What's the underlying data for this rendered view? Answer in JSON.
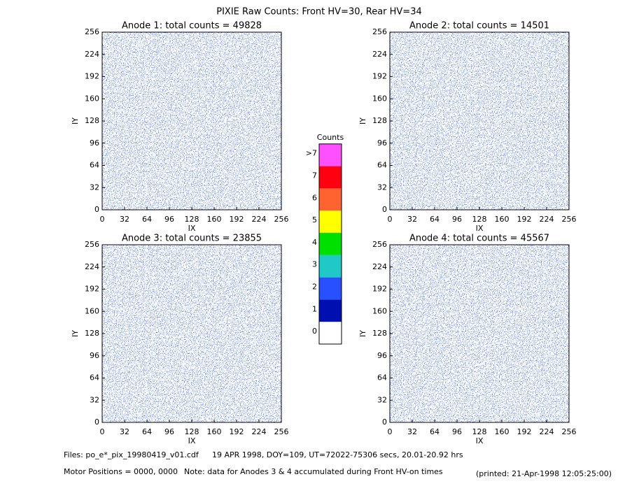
{
  "title": "PIXIE Raw Counts:  Front HV=30, Rear HV=34",
  "panels": [
    {
      "title": "Anode 1: total counts = 49828",
      "xlabel": "IX",
      "ylabel": "IY",
      "xlim": [
        0,
        256
      ],
      "ylim": [
        0,
        256
      ],
      "xticks": [
        0,
        32,
        64,
        96,
        128,
        160,
        192,
        224,
        256
      ],
      "yticks": [
        0,
        32,
        64,
        96,
        128,
        160,
        192,
        224,
        256
      ]
    },
    {
      "title": "Anode 2: total counts = 14501",
      "xlabel": "IX",
      "ylabel": "IY",
      "xlim": [
        0,
        256
      ],
      "ylim": [
        0,
        256
      ],
      "xticks": [
        0,
        32,
        64,
        96,
        128,
        160,
        192,
        224,
        256
      ],
      "yticks": [
        0,
        32,
        64,
        96,
        128,
        160,
        192,
        224,
        256
      ]
    },
    {
      "title": "Anode 3: total counts = 23855",
      "xlabel": "IX",
      "ylabel": "IY",
      "xlim": [
        0,
        256
      ],
      "ylim": [
        0,
        256
      ],
      "xticks": [
        0,
        32,
        64,
        96,
        128,
        160,
        192,
        224,
        256
      ],
      "yticks": [
        0,
        32,
        64,
        96,
        128,
        160,
        192,
        224,
        256
      ]
    },
    {
      "title": "Anode 4: total counts = 45567",
      "xlabel": "IX",
      "ylabel": "IY",
      "xlim": [
        0,
        256
      ],
      "ylim": [
        0,
        256
      ],
      "xticks": [
        0,
        32,
        64,
        96,
        128,
        160,
        192,
        224,
        256
      ],
      "yticks": [
        0,
        32,
        64,
        96,
        128,
        160,
        192,
        224,
        256
      ]
    }
  ],
  "colorbar": {
    "title": "Counts",
    "levels": [
      {
        "label": "0",
        "color": "#ffffff"
      },
      {
        "label": "1",
        "color": "#0010b0"
      },
      {
        "label": "2",
        "color": "#2850ff"
      },
      {
        "label": "3",
        "color": "#20c8c8"
      },
      {
        "label": "4",
        "color": "#00e000"
      },
      {
        "label": "5",
        "color": "#ffff00"
      },
      {
        "label": "6",
        "color": "#ff6430"
      },
      {
        "label": "7",
        "color": "#ff0010"
      },
      {
        "label": ">7",
        "color": "#ff50ff"
      }
    ]
  },
  "footer": {
    "files": "Files: po_e*_pix_19980419_v01.cdf",
    "info": "19 APR 1998, DOY=109, UT=72022-75306 secs, 20.01-20.92 hrs",
    "motor": "Motor Positions = 0000, 0000",
    "note": "Note: data for Anodes 3 & 4 accumulated during Front HV-on times",
    "printed": "(printed: 21-Apr-1998 12:05:25:00)"
  }
}
